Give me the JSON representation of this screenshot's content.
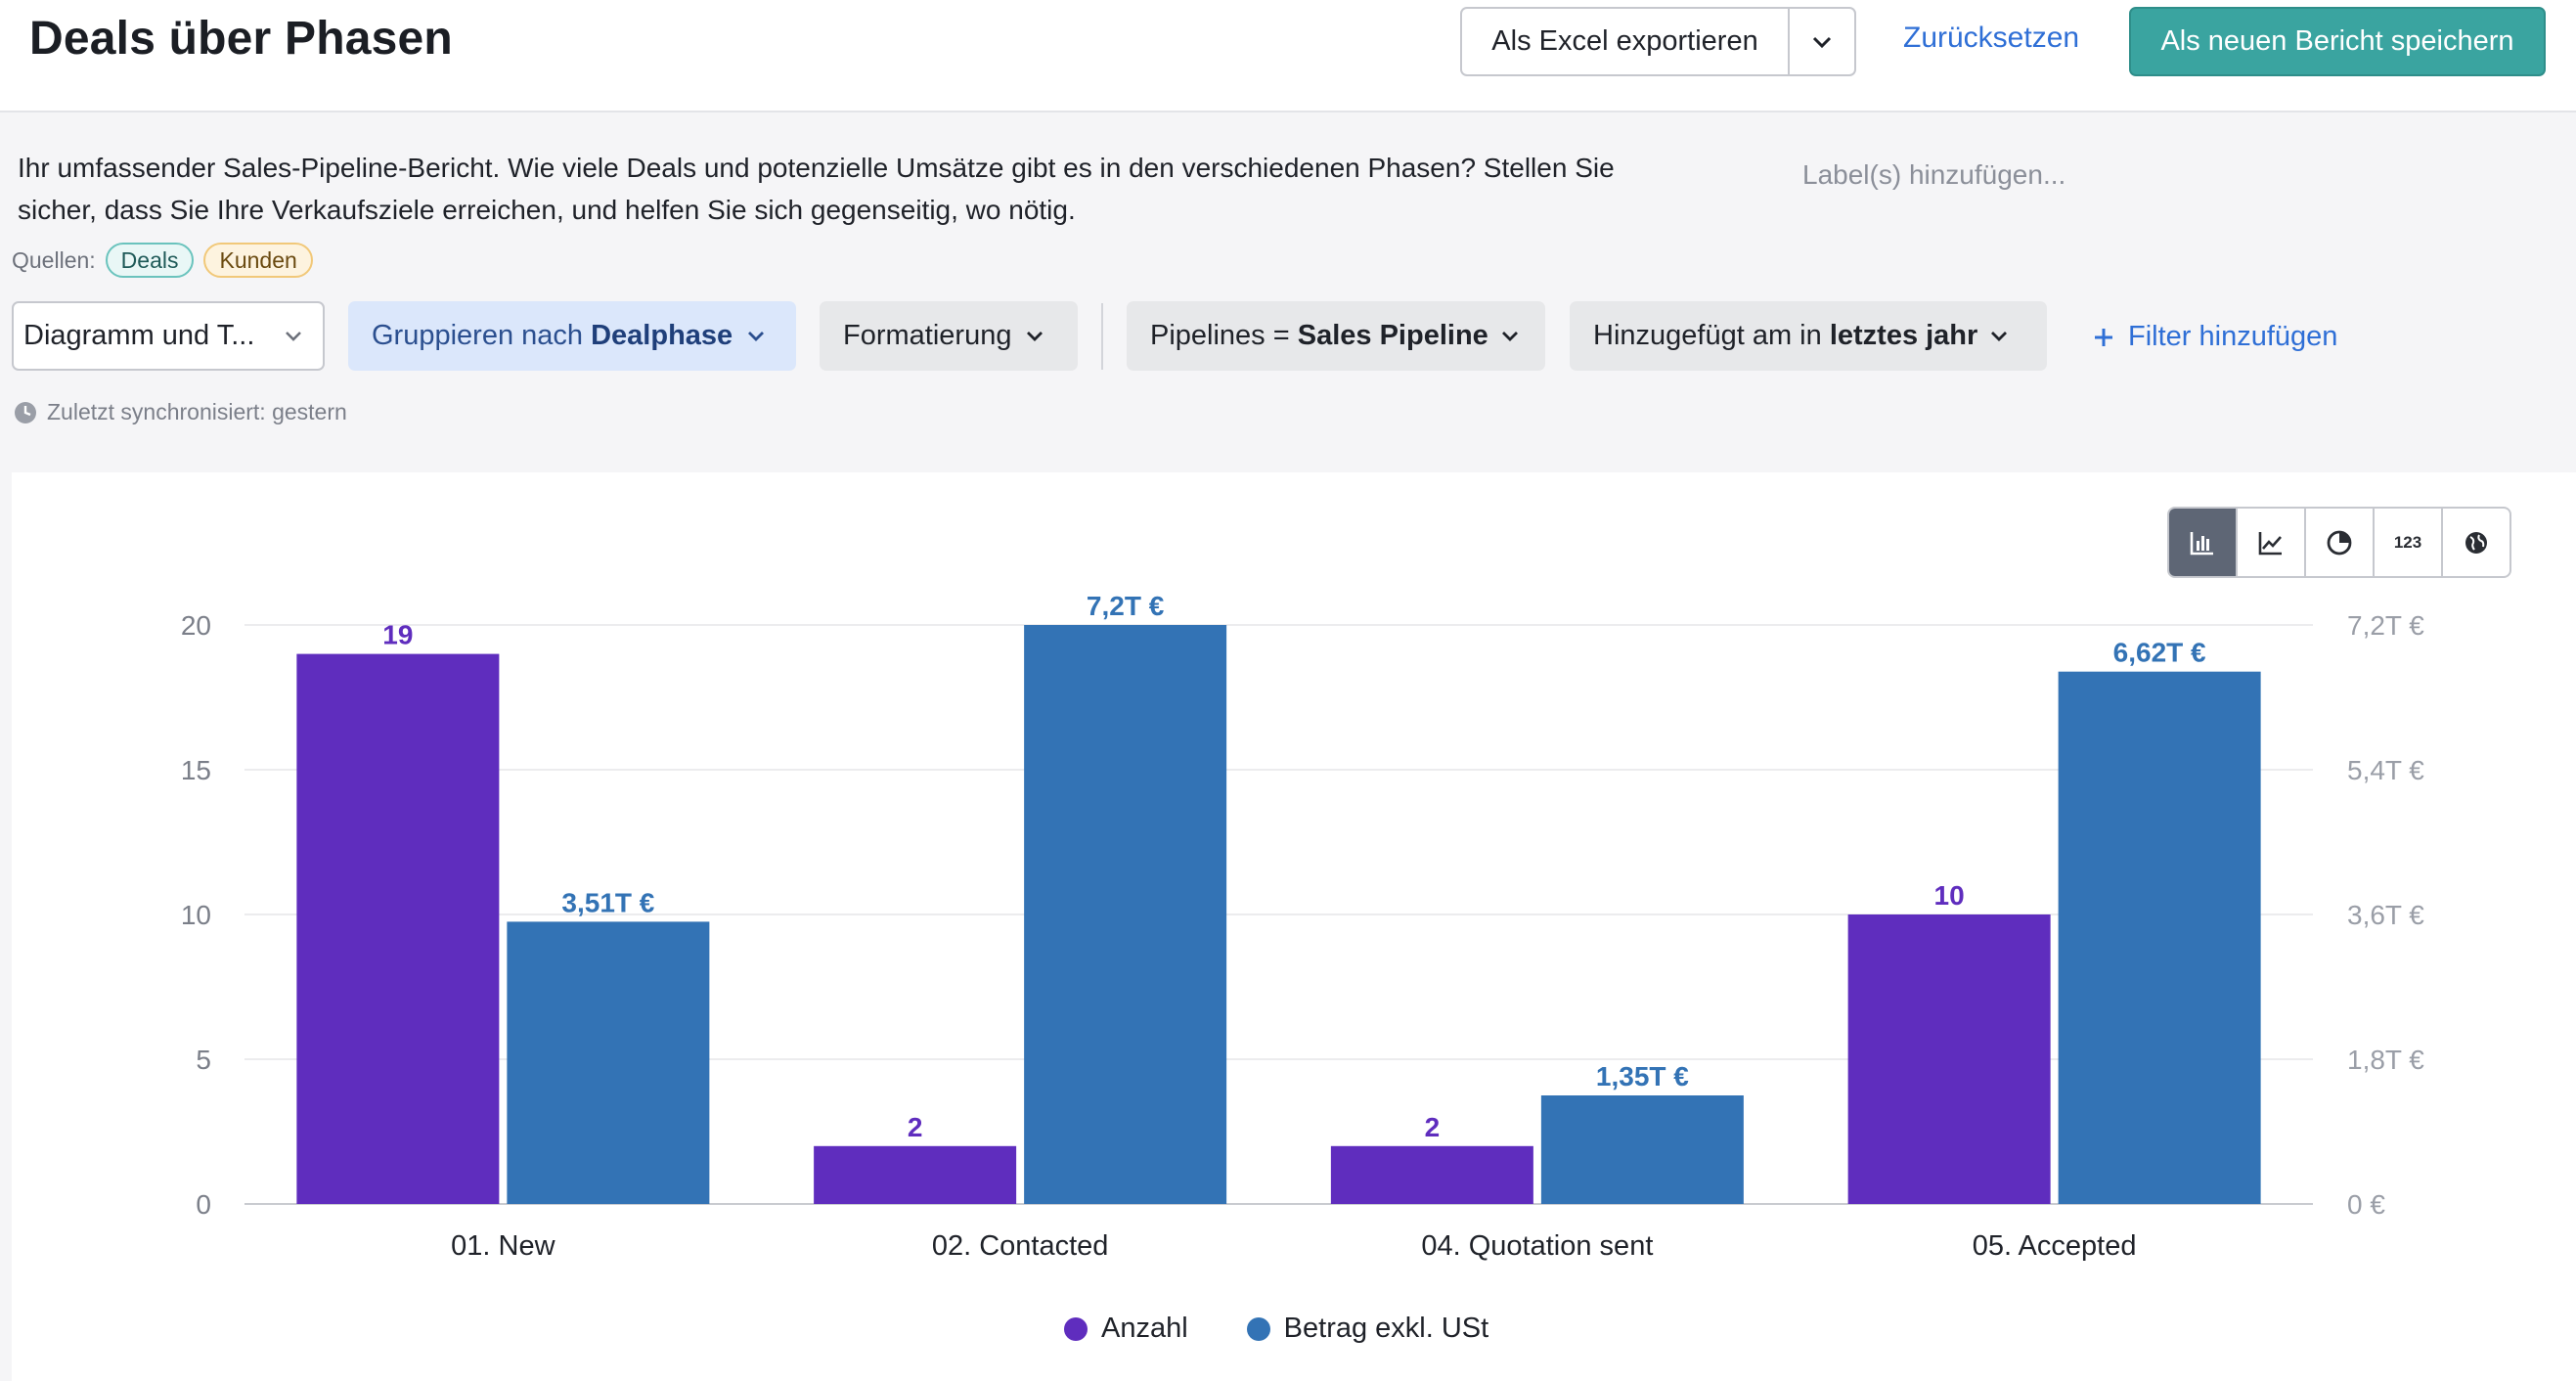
{
  "header": {
    "title": "Deals über Phasen",
    "export_label": "Als Excel exportieren",
    "reset_label": "Zurücksetzen",
    "save_label": "Als neuen Bericht speichern"
  },
  "description": {
    "line1": "Ihr umfassender Sales-Pipeline-Bericht. Wie viele Deals und potenzielle Umsätze gibt es in den verschiedenen Phasen? Stellen Sie",
    "line2": "sicher, dass Sie Ihre Verkaufsziele erreichen, und helfen Sie sich gegenseitig, wo nötig.",
    "labels_placeholder": "Label(s) hinzufügen..."
  },
  "sources": {
    "label": "Quellen:",
    "items": [
      "Deals",
      "Kunden"
    ]
  },
  "toolbar": {
    "view_value": "Diagramm und T...",
    "group_prefix": "Gruppieren nach",
    "group_value": "Dealphase",
    "format_label": "Formatierung",
    "pipeline_prefix": "Pipelines =",
    "pipeline_value": "Sales Pipeline",
    "date_prefix": "Hinzugefügt am in",
    "date_value": "letztes jahr",
    "add_filter_label": "Filter hinzufügen"
  },
  "sync_text": "Zuletzt synchronisiert: gestern",
  "chart_switcher": {
    "items": [
      "bar-chart-icon",
      "line-chart-icon",
      "pie-chart-icon",
      "number-icon",
      "globe-icon"
    ],
    "number_label": "123",
    "active": "bar-chart-icon"
  },
  "colors": {
    "anzahl": "#5f2dbe",
    "betrag": "#3373b5",
    "accent": "#3aa4a0",
    "link": "#2f6fd6"
  },
  "chart_data": {
    "type": "bar",
    "categories": [
      "01. New",
      "02. Contacted",
      "04. Quotation sent",
      "05. Accepted"
    ],
    "series": [
      {
        "name": "Anzahl",
        "axis": "left",
        "values": [
          19,
          2,
          2,
          10
        ],
        "labels": [
          "19",
          "2",
          "2",
          "10"
        ]
      },
      {
        "name": "Betrag exkl. USt",
        "axis": "right",
        "values": [
          3510,
          7200,
          1350,
          6620
        ],
        "labels": [
          "3,51T €",
          "7,2T €",
          "1,35T €",
          "6,62T €"
        ]
      }
    ],
    "left_axis": {
      "ylim": [
        0,
        20
      ],
      "ticks": [
        0,
        5,
        10,
        15,
        20
      ],
      "tick_labels": [
        "0",
        "5",
        "10",
        "15",
        "20"
      ]
    },
    "right_axis": {
      "ylim": [
        0,
        7200
      ],
      "ticks": [
        0,
        1800,
        3600,
        5400,
        7200
      ],
      "tick_labels": [
        "0 €",
        "1,8T €",
        "3,6T €",
        "5,4T €",
        "7,2T €"
      ]
    },
    "legend_position": "bottom-center",
    "grid": true
  }
}
